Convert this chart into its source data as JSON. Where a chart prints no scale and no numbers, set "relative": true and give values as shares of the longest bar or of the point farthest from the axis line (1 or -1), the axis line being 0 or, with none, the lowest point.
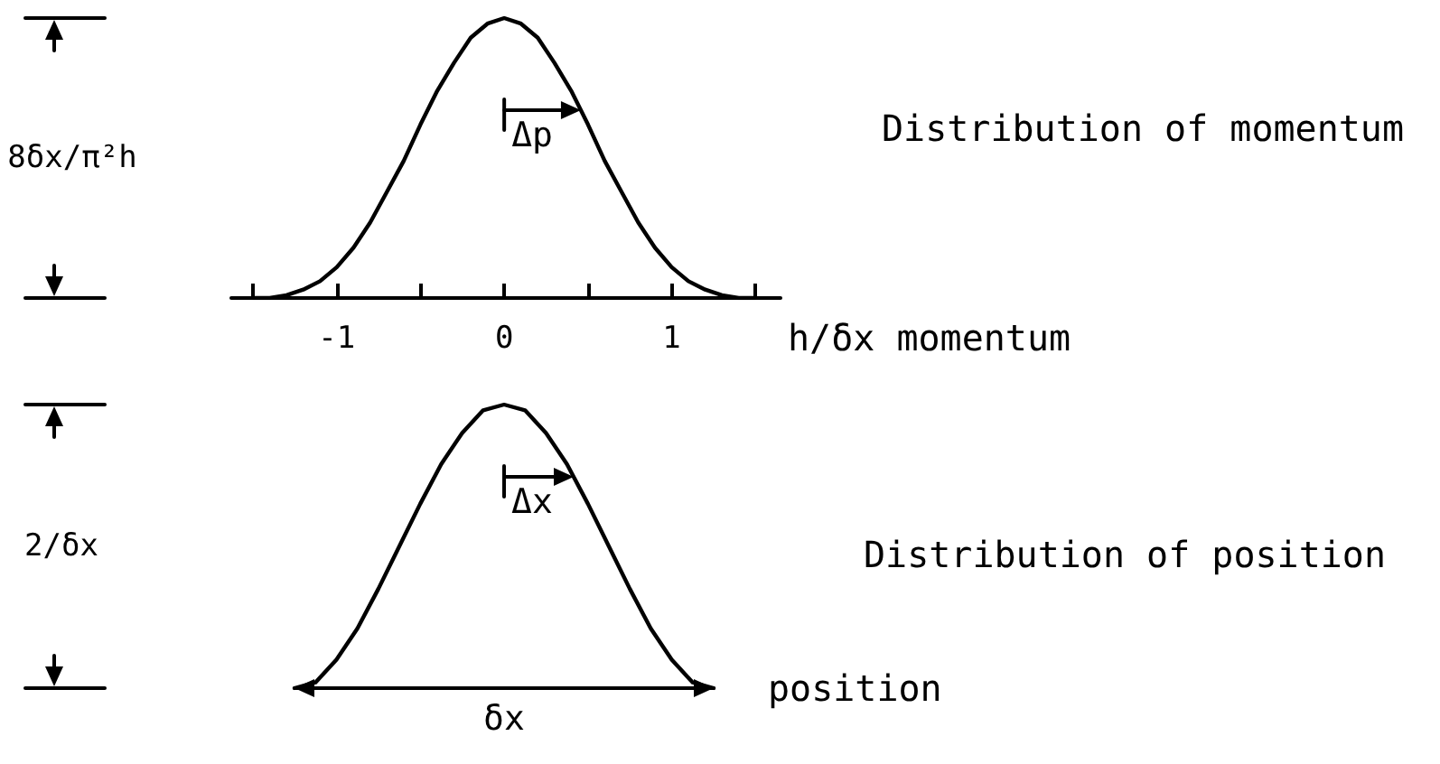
{
  "chart_data": [
    {
      "type": "line",
      "xlabel": "h/δx momentum",
      "annotations": [
        "8δx/π²h",
        "Δp"
      ],
      "x": [
        -1.5,
        -1.4,
        -1.3,
        -1.2,
        -1.1,
        -1,
        -0.9,
        -0.8,
        -0.7,
        -0.6,
        -0.5,
        -0.4,
        -0.3,
        -0.2,
        -0.1,
        0,
        0.1,
        0.2,
        0.3,
        0.4,
        0.5,
        0.6,
        0.7,
        0.8,
        0.9,
        1,
        1.1,
        1.2,
        1.3,
        1.4,
        1.5
      ],
      "series": [
        {
          "name": "Distribution of momentum",
          "color": "#000000",
          "values": [
            0,
            0,
            0.01,
            0.03,
            0.06,
            0.11,
            0.18,
            0.27,
            0.38,
            0.49,
            0.62,
            0.74,
            0.84,
            0.93,
            0.98,
            1,
            0.98,
            0.93,
            0.84,
            0.74,
            0.62,
            0.49,
            0.38,
            0.27,
            0.18,
            0.11,
            0.06,
            0.03,
            0.01,
            0,
            0
          ]
        }
      ],
      "relative": true,
      "xlim": [
        -1.63,
        1.65
      ],
      "xticks": [
        {
          "value": -1.5,
          "label": null
        },
        -1,
        {
          "value": -0.5,
          "label": null
        },
        0,
        {
          "value": 0.5,
          "label": null
        },
        1,
        {
          "value": 1.5,
          "label": null
        }
      ],
      "tick_labels": "x",
      "legend": "right",
      "marker": "none",
      "line_style": "solid"
    },
    {
      "type": "line",
      "xlabel": "position",
      "annotations": [
        "2/δx",
        "Δx",
        "δx"
      ],
      "categories": [
        null,
        null,
        null,
        null,
        null,
        null,
        null,
        null,
        null,
        null,
        null,
        null,
        null,
        null,
        null,
        null,
        null,
        null,
        null,
        null,
        null
      ],
      "series": [
        {
          "name": "Distribution of position",
          "color": "#000000",
          "values": [
            0,
            0.02,
            0.1,
            0.21,
            0.35,
            0.5,
            0.65,
            0.79,
            0.9,
            0.98,
            1,
            0.98,
            0.9,
            0.79,
            0.65,
            0.5,
            0.35,
            0.21,
            0.1,
            0.02,
            0
          ]
        }
      ],
      "relative": true,
      "tick_labels": false,
      "legend": "right",
      "marker": "none",
      "line_style": "solid"
    }
  ]
}
